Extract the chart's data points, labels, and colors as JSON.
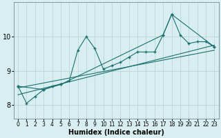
{
  "xlabel": "Humidex (Indice chaleur)",
  "bg_color": "#d8eef0",
  "grid_color": "#c0d8da",
  "line_color": "#1a7070",
  "xlim": [
    -0.5,
    23.5
  ],
  "ylim": [
    7.6,
    11.0
  ],
  "yticks": [
    8,
    9,
    10
  ],
  "xticks": [
    0,
    1,
    2,
    3,
    4,
    5,
    6,
    7,
    8,
    9,
    10,
    11,
    12,
    13,
    14,
    15,
    16,
    17,
    18,
    19,
    20,
    21,
    22,
    23
  ],
  "series1_x": [
    0,
    1,
    2,
    3,
    4,
    5,
    6,
    7,
    8,
    9,
    10,
    11,
    12,
    13,
    14,
    15,
    16,
    17,
    18,
    19,
    20,
    21,
    22,
    23
  ],
  "series1_y": [
    8.55,
    8.05,
    8.25,
    8.45,
    8.55,
    8.6,
    8.7,
    9.6,
    10.0,
    9.65,
    9.05,
    9.15,
    9.25,
    9.4,
    9.55,
    9.55,
    9.55,
    10.05,
    10.65,
    10.05,
    9.8,
    9.85,
    9.85,
    9.7
  ],
  "series2_x": [
    0,
    3,
    5,
    17,
    18,
    23
  ],
  "series2_y": [
    8.55,
    8.45,
    8.6,
    10.05,
    10.65,
    9.7
  ],
  "series3_x": [
    0,
    23
  ],
  "series3_y": [
    8.3,
    9.75
  ],
  "series4_x": [
    0,
    23
  ],
  "series4_y": [
    8.5,
    9.6
  ]
}
